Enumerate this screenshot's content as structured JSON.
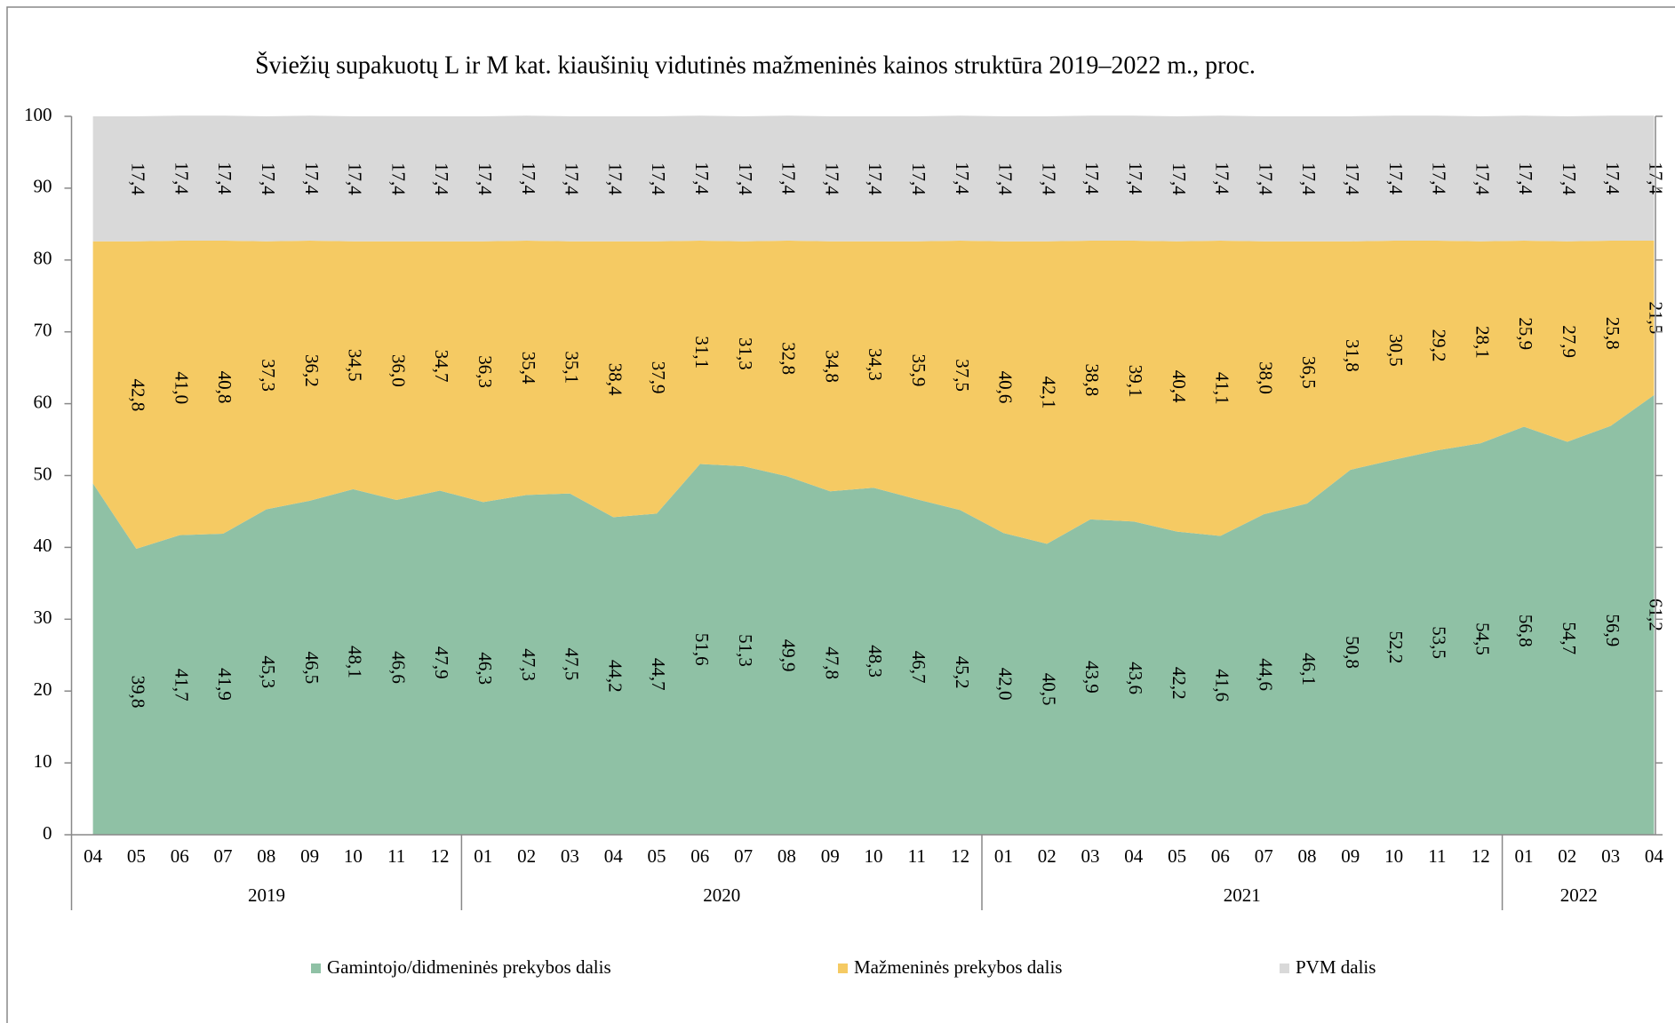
{
  "chart_data": {
    "type": "stacked_area",
    "title": "Šviežių supakuotų L ir M kat. kiaušinių vidutinės mažmeninės kainos struktūra 2019–2022 m., proc.",
    "groups": [
      {
        "name": "2019",
        "categories": [
          "04",
          "05",
          "06",
          "07",
          "08",
          "09",
          "10",
          "11",
          "12"
        ]
      },
      {
        "name": "2020",
        "categories": [
          "01",
          "02",
          "03",
          "04",
          "05",
          "06",
          "07",
          "08",
          "09",
          "10",
          "11",
          "12"
        ]
      },
      {
        "name": "2021",
        "categories": [
          "01",
          "02",
          "03",
          "04",
          "05",
          "06",
          "07",
          "08",
          "09",
          "10",
          "11",
          "12"
        ]
      },
      {
        "name": "2022",
        "categories": [
          "01",
          "02",
          "03",
          "04"
        ]
      }
    ],
    "series": [
      {
        "name": "Gamintojo/didmeninės prekybos dalis",
        "color": "#8fc1a5",
        "values": [
          48.9,
          39.8,
          41.7,
          41.9,
          45.3,
          46.5,
          48.1,
          46.6,
          47.9,
          46.3,
          47.3,
          47.5,
          44.2,
          44.7,
          51.6,
          51.3,
          49.9,
          47.8,
          48.3,
          46.7,
          45.2,
          42.0,
          40.5,
          43.9,
          43.6,
          42.2,
          41.6,
          44.6,
          46.1,
          50.8,
          52.2,
          53.5,
          54.5,
          56.8,
          54.7,
          56.9,
          61.2
        ],
        "value_labels": [
          null,
          "39,8",
          "41,7",
          "41,9",
          "45,3",
          "46,5",
          "48,1",
          "46,6",
          "47,9",
          "46,3",
          "47,3",
          "47,5",
          "44,2",
          "44,7",
          "51,6",
          "51,3",
          "49,9",
          "47,8",
          "48,3",
          "46,7",
          "45,2",
          "42,0",
          "40,5",
          "43,9",
          "43,6",
          "42,2",
          "41,6",
          "44,6",
          "46,1",
          "50,8",
          "52,2",
          "53,5",
          "54,5",
          "56,8",
          "54,7",
          "56,9",
          "61,2"
        ]
      },
      {
        "name": "Mažmeninės prekybos dalis",
        "color": "#f5ca63",
        "values": [
          33.7,
          42.8,
          41.0,
          40.8,
          37.3,
          36.2,
          34.5,
          36.0,
          34.7,
          36.3,
          35.4,
          35.1,
          38.4,
          37.9,
          31.1,
          31.3,
          32.8,
          34.8,
          34.3,
          35.9,
          37.5,
          40.6,
          42.1,
          38.8,
          39.1,
          40.4,
          41.1,
          38.0,
          36.5,
          31.8,
          30.5,
          29.2,
          28.1,
          25.9,
          27.9,
          25.8,
          21.5
        ],
        "value_labels": [
          null,
          "42,8",
          "41,0",
          "40,8",
          "37,3",
          "36,2",
          "34,5",
          "36,0",
          "34,7",
          "36,3",
          "35,4",
          "35,1",
          "38,4",
          "37,9",
          "31,1",
          "31,3",
          "32,8",
          "34,8",
          "34,3",
          "35,9",
          "37,5",
          "40,6",
          "42,1",
          "38,8",
          "39,1",
          "40,4",
          "41,1",
          "38,0",
          "36,5",
          "31,8",
          "30,5",
          "29,2",
          "28,1",
          "25,9",
          "27,9",
          "25,8",
          "21,5"
        ]
      },
      {
        "name": "PVM dalis",
        "color": "#d9d9d9",
        "values": [
          17.4,
          17.4,
          17.4,
          17.4,
          17.4,
          17.4,
          17.4,
          17.4,
          17.4,
          17.4,
          17.4,
          17.4,
          17.4,
          17.4,
          17.4,
          17.4,
          17.4,
          17.4,
          17.4,
          17.4,
          17.4,
          17.4,
          17.4,
          17.4,
          17.4,
          17.4,
          17.4,
          17.4,
          17.4,
          17.4,
          17.4,
          17.4,
          17.4,
          17.4,
          17.4,
          17.4,
          17.4
        ],
        "value_labels": [
          null,
          "17,4",
          "17,4",
          "17,4",
          "17,4",
          "17,4",
          "17,4",
          "17,4",
          "17,4",
          "17,4",
          "17,4",
          "17,4",
          "17,4",
          "17,4",
          "17,4",
          "17,4",
          "17,4",
          "17,4",
          "17,4",
          "17,4",
          "17,4",
          "17,4",
          "17,4",
          "17,4",
          "17,4",
          "17,4",
          "17,4",
          "17,4",
          "17,4",
          "17,4",
          "17,4",
          "17,4",
          "17,4",
          "17,4",
          "17,4",
          "17,4",
          "17,4"
        ]
      }
    ],
    "ylim": [
      0,
      100
    ],
    "yticks": [
      0,
      10,
      20,
      30,
      40,
      50,
      60,
      70,
      80,
      90,
      100
    ],
    "legend": "bottom"
  }
}
